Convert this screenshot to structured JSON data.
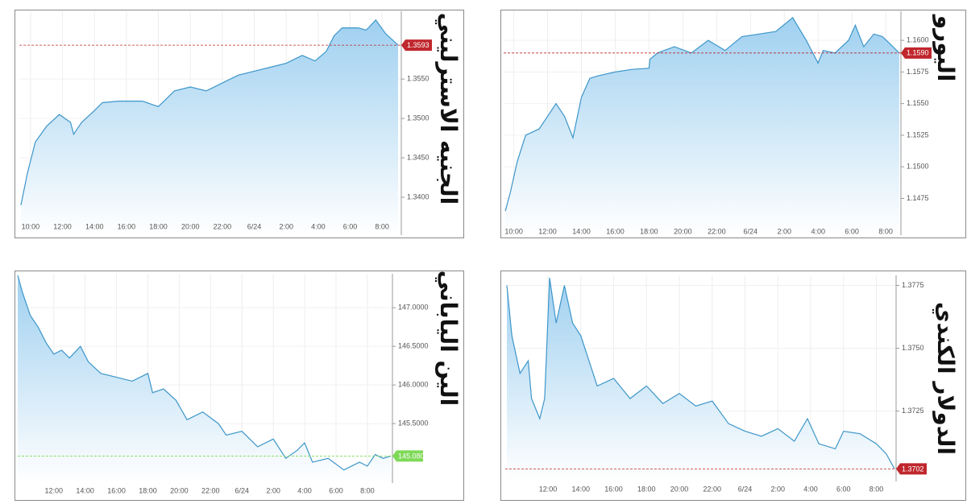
{
  "chart_data": [
    {
      "type": "line",
      "title": "الجنيه الاسترليني",
      "color": "#3d96c9",
      "grid": true,
      "x": [
        9.4,
        9.8,
        10.3,
        11,
        11.8,
        12.5,
        12.7,
        13.2,
        14,
        14.5,
        15.5,
        17,
        18,
        18.5,
        19,
        20,
        21,
        22,
        23,
        24,
        25,
        26,
        27,
        27.8,
        28.5,
        29,
        29.5,
        30.5,
        31,
        31.6,
        32.2,
        33
      ],
      "values": [
        1.339,
        1.343,
        1.347,
        1.349,
        1.3505,
        1.3495,
        1.348,
        1.3495,
        1.351,
        1.352,
        1.3522,
        1.3522,
        1.3515,
        1.3525,
        1.3535,
        1.354,
        1.3535,
        1.3545,
        1.3555,
        1.356,
        1.3565,
        1.357,
        1.358,
        1.3573,
        1.3585,
        1.3605,
        1.3615,
        1.3615,
        1.3612,
        1.3625,
        1.3608,
        1.3593
      ],
      "xlim": [
        9.3,
        33.2
      ],
      "ylim": [
        1.3352,
        1.3636
      ],
      "xticks": [
        {
          "value": 10,
          "label": "10:00"
        },
        {
          "value": 12,
          "label": "12:00"
        },
        {
          "value": 14,
          "label": "14:00"
        },
        {
          "value": 16,
          "label": "16:00"
        },
        {
          "value": 18,
          "label": "18:00"
        },
        {
          "value": 20,
          "label": "20:00"
        },
        {
          "value": 22,
          "label": "22:00"
        },
        {
          "value": 24,
          "label": "6/24"
        },
        {
          "value": 26,
          "label": "2:00"
        },
        {
          "value": 28,
          "label": "4:00"
        },
        {
          "value": 30,
          "label": "6:00"
        },
        {
          "value": 32,
          "label": "8:00"
        }
      ],
      "yticks": [
        {
          "value": 1.34,
          "label": "1.3400"
        },
        {
          "value": 1.345,
          "label": "1.3450"
        },
        {
          "value": 1.35,
          "label": "1.3500"
        },
        {
          "value": 1.355,
          "label": "1.3550"
        }
      ],
      "current": {
        "value": 1.3593,
        "label": "1.3593"
      },
      "current_color": "#c0272d"
    },
    {
      "type": "line",
      "title": "اليورو",
      "color": "#3d96c9",
      "grid": true,
      "x": [
        9.5,
        9.8,
        10.2,
        10.7,
        11.5,
        12,
        12.5,
        13,
        13.5,
        14,
        14.5,
        15,
        16,
        17,
        18,
        18.05,
        18.5,
        19.5,
        20.5,
        21.5,
        22.5,
        23.5,
        24.5,
        25.5,
        26.5,
        27.3,
        28,
        28.3,
        29,
        29.8,
        30.2,
        30.7,
        31.3,
        31.8,
        32.2,
        32.8
      ],
      "values": [
        1.1465,
        1.148,
        1.1504,
        1.1525,
        1.153,
        1.154,
        1.155,
        1.154,
        1.1523,
        1.1555,
        1.157,
        1.1572,
        1.1575,
        1.1577,
        1.1578,
        1.1585,
        1.159,
        1.1595,
        1.159,
        1.16,
        1.1592,
        1.1603,
        1.1605,
        1.1607,
        1.1618,
        1.16,
        1.1582,
        1.1592,
        1.159,
        1.16,
        1.1612,
        1.1595,
        1.1605,
        1.1603,
        1.1598,
        1.159
      ],
      "xlim": [
        9.4,
        32.9
      ],
      "ylim": [
        1.1446,
        1.1623
      ],
      "xticks": [
        {
          "value": 10,
          "label": "10:00"
        },
        {
          "value": 12,
          "label": "12:00"
        },
        {
          "value": 14,
          "label": "14:00"
        },
        {
          "value": 16,
          "label": "16:00"
        },
        {
          "value": 18,
          "label": "18:00"
        },
        {
          "value": 20,
          "label": "20:00"
        },
        {
          "value": 22,
          "label": "22:00"
        },
        {
          "value": 24,
          "label": "6/24"
        },
        {
          "value": 26,
          "label": "2:00"
        },
        {
          "value": 28,
          "label": "4:00"
        },
        {
          "value": 30,
          "label": "6:00"
        },
        {
          "value": 32,
          "label": "8:00"
        }
      ],
      "yticks": [
        {
          "value": 1.1475,
          "label": "1.1475"
        },
        {
          "value": 1.15,
          "label": "1.1500"
        },
        {
          "value": 1.1525,
          "label": "1.1525"
        },
        {
          "value": 1.155,
          "label": "1.1550"
        },
        {
          "value": 1.1575,
          "label": "1.1575"
        },
        {
          "value": 1.16,
          "label": "1.1600"
        }
      ],
      "current": {
        "value": 1.159,
        "label": "1.1590"
      },
      "current_color": "#c0272d"
    },
    {
      "type": "line",
      "title": "الين الياباني",
      "color": "#3d96c9",
      "grid": true,
      "x": [
        9.7,
        10,
        10.5,
        11,
        11.5,
        12,
        12.5,
        13,
        13.7,
        14.2,
        15,
        16,
        17,
        18,
        18.3,
        19,
        19.8,
        20.5,
        21.5,
        22.5,
        23,
        24,
        25,
        26,
        26.8,
        27.5,
        28,
        28.5,
        29.5,
        30.5,
        31.5,
        32,
        32.5,
        33,
        33.5
      ],
      "values": [
        147.42,
        147.2,
        146.9,
        146.75,
        146.55,
        146.4,
        146.45,
        146.35,
        146.5,
        146.3,
        146.15,
        146.1,
        146.05,
        146.15,
        145.9,
        145.95,
        145.8,
        145.55,
        145.65,
        145.5,
        145.35,
        145.4,
        145.2,
        145.3,
        145.05,
        145.15,
        145.25,
        145,
        145.05,
        144.9,
        145,
        144.95,
        145.1,
        145.05,
        145.08
      ],
      "xlim": [
        9.7,
        33.6
      ],
      "ylim": [
        144.73,
        147.44
      ],
      "xticks": [
        {
          "value": 12,
          "label": "12:00"
        },
        {
          "value": 14,
          "label": "14:00"
        },
        {
          "value": 16,
          "label": "16:00"
        },
        {
          "value": 18,
          "label": "18:00"
        },
        {
          "value": 20,
          "label": "20:00"
        },
        {
          "value": 22,
          "label": "22:00"
        },
        {
          "value": 24,
          "label": "6/24"
        },
        {
          "value": 26,
          "label": "2:00"
        },
        {
          "value": 28,
          "label": "4:00"
        },
        {
          "value": 30,
          "label": "6:00"
        },
        {
          "value": 32,
          "label": "8:00"
        }
      ],
      "yticks": [
        {
          "value": 145.5,
          "label": "145.5000"
        },
        {
          "value": 146,
          "label": "146.0000"
        },
        {
          "value": 146.5,
          "label": "146.5000"
        },
        {
          "value": 147,
          "label": "147.0000"
        }
      ],
      "current": {
        "value": 145.08,
        "label": "145.0800"
      },
      "current_color": "#7ed957"
    },
    {
      "type": "line",
      "title": "الدولار الكندي",
      "color": "#3d96c9",
      "grid": true,
      "x": [
        9.5,
        9.8,
        10.3,
        10.8,
        11,
        11.5,
        11.8,
        12.1,
        12.5,
        13,
        13.5,
        14,
        14.5,
        15,
        16,
        17,
        18,
        19,
        20,
        21,
        22,
        23,
        24,
        25,
        26,
        27,
        27.8,
        28.5,
        29.5,
        30,
        31,
        32,
        32.6,
        33.1
      ],
      "values": [
        1.3775,
        1.3755,
        1.374,
        1.3745,
        1.373,
        1.3722,
        1.373,
        1.3778,
        1.376,
        1.3775,
        1.376,
        1.3755,
        1.3745,
        1.3735,
        1.3738,
        1.373,
        1.3735,
        1.3728,
        1.3732,
        1.3727,
        1.3729,
        1.372,
        1.3717,
        1.3715,
        1.3718,
        1.3713,
        1.3722,
        1.3712,
        1.371,
        1.3717,
        1.3716,
        1.3712,
        1.3708,
        1.3702
      ],
      "xlim": [
        9.4,
        33.2
      ],
      "ylim": [
        1.3697,
        1.3779
      ],
      "xticks": [
        {
          "value": 12,
          "label": "12:00"
        },
        {
          "value": 14,
          "label": "14:00"
        },
        {
          "value": 16,
          "label": "16:00"
        },
        {
          "value": 18,
          "label": "18:00"
        },
        {
          "value": 20,
          "label": "20:00"
        },
        {
          "value": 22,
          "label": "22:00"
        },
        {
          "value": 24,
          "label": "6/24"
        },
        {
          "value": 26,
          "label": "2:00"
        },
        {
          "value": 28,
          "label": "4:00"
        },
        {
          "value": 30,
          "label": "6:00"
        },
        {
          "value": 32,
          "label": "8:00"
        }
      ],
      "yticks": [
        {
          "value": 1.3725,
          "label": "1.3725"
        },
        {
          "value": 1.375,
          "label": "1.3750"
        },
        {
          "value": 1.3775,
          "label": "1.3775"
        }
      ],
      "current": {
        "value": 1.3702,
        "label": "1.3702"
      },
      "current_color": "#c0272d"
    }
  ]
}
